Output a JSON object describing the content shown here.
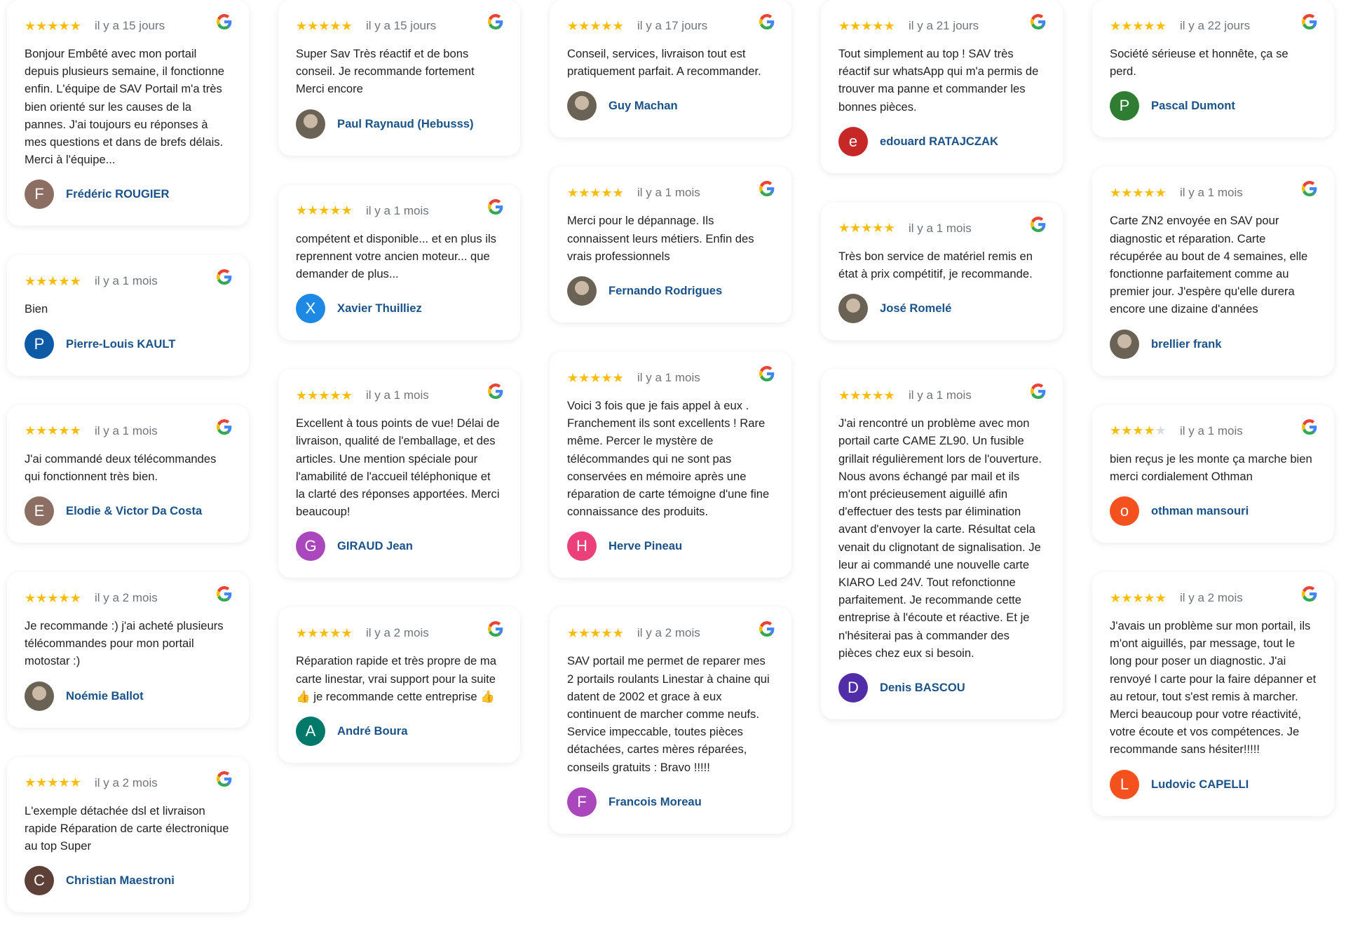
{
  "columns": [
    [
      {
        "rating": 5,
        "date": "il y a 15 jours",
        "text": "Bonjour Embêté avec mon portail depuis plusieurs semaine, il fonctionne enfin. L'équipe de SAV Portail m'a très bien orienté sur les causes de la pannes. J'ai toujours eu réponses à mes questions et dans de brefs délais. Merci à l'équipe...",
        "author": "Frédéric ROUGIER",
        "initial": "F",
        "color": "#8d6e63"
      },
      {
        "rating": 5,
        "date": "il y a 1 mois",
        "text": "Bien",
        "author": "Pierre-Louis KAULT",
        "initial": "P",
        "color": "#0d5aa7"
      },
      {
        "rating": 5,
        "date": "il y a 1 mois",
        "text": "J'ai commandé deux télécommandes qui fonctionnent très bien.",
        "author": "Elodie & Victor Da Costa",
        "initial": "E",
        "color": "#8d6e63"
      },
      {
        "rating": 5,
        "date": "il y a 2 mois",
        "text": "Je recommande :) j'ai acheté plusieurs télécommandes pour mon portail motostar :)",
        "author": "Noémie Ballot",
        "initial": "",
        "color": "photo"
      },
      {
        "rating": 5,
        "date": "il y a 2 mois",
        "text": "L'exemple détachée dsl et livraison rapide Réparation de carte électronique au top Super",
        "author": "Christian Maestroni",
        "initial": "C",
        "color": "#5d4037"
      }
    ],
    [
      {
        "rating": 5,
        "date": "il y a 15 jours",
        "text": "Super Sav Très réactif et de bons conseil. Je recommande fortement Merci encore",
        "author": "Paul Raynaud (Hebusss)",
        "initial": "",
        "color": "photo"
      },
      {
        "rating": 5,
        "date": "il y a 1 mois",
        "text": "compétent et disponible... et en plus ils reprennent votre ancien moteur... que demander de plus...",
        "author": "Xavier Thuilliez",
        "initial": "X",
        "color": "#1e88e5"
      },
      {
        "rating": 5,
        "date": "il y a 1 mois",
        "text": "Excellent à tous points de vue! Délai de livraison, qualité de l'emballage, et des articles. Une mention spéciale pour l'amabilité de l'accueil téléphonique et la clarté des réponses apportées. Merci beaucoup!",
        "author": "GIRAUD Jean",
        "initial": "G",
        "color": "#ab47bc"
      },
      {
        "rating": 5,
        "date": "il y a 2 mois",
        "text": "Réparation rapide et très propre de ma carte linestar, vrai support pour la suite 👍 je recommande cette entreprise 👍",
        "author": "André Boura",
        "initial": "A",
        "color": "#00796b"
      }
    ],
    [
      {
        "rating": 5,
        "date": "il y a 17 jours",
        "text": "Conseil, services, livraison tout est pratiquement parfait. A recommander.",
        "author": "Guy Machan",
        "initial": "",
        "color": "photo"
      },
      {
        "rating": 5,
        "date": "il y a 1 mois",
        "text": "Merci pour le dépannage. Ils connaissent leurs métiers. Enfin des vrais professionnels",
        "author": "Fernando Rodrigues",
        "initial": "",
        "color": "photo"
      },
      {
        "rating": 5,
        "date": "il y a 1 mois",
        "text": "Voici 3 fois que je fais appel à eux . Franchement ils sont excellents ! Rare même. Percer le mystère de télécommandes qui ne sont pas conservées en mémoire après une réparation de carte témoigne d'une fine connaissance des produits.",
        "author": "Herve Pineau",
        "initial": "H",
        "color": "#ec407a"
      },
      {
        "rating": 5,
        "date": "il y a 2 mois",
        "text": "SAV portail me permet de reparer mes 2 portails roulants Linestar à chaine qui datent de 2002 et grace à eux continuent de marcher comme neufs. Service impeccable, toutes pièces détachées, cartes mères réparées, conseils gratuits : Bravo !!!!!",
        "author": "Francois Moreau",
        "initial": "F",
        "color": "#ab47bc"
      }
    ],
    [
      {
        "rating": 5,
        "date": "il y a 21 jours",
        "text": "Tout simplement au top ! SAV très réactif sur whatsApp qui m'a permis de trouver ma panne et commander les bonnes pièces.",
        "author": "edouard RATAJCZAK",
        "initial": "e",
        "color": "#c62828"
      },
      {
        "rating": 5,
        "date": "il y a 1 mois",
        "text": "Très bon service de matériel remis en état à prix compétitif, je recommande.",
        "author": "José Romelé",
        "initial": "",
        "color": "photo"
      },
      {
        "rating": 5,
        "date": "il y a 1 mois",
        "text": "J'ai rencontré un problème avec mon portail carte CAME ZL90. Un fusible grillait régulièrement lors de l'ouverture. Nous avons échangé par mail et ils m'ont précieusement aiguillé afin d'effectuer des tests par élimination avant d'envoyer la carte. Résultat cela venait du clignotant de signalisation. Je leur ai commandé une nouvelle carte KIARO Led 24V. Tout refonctionne parfaitement. Je recommande cette entreprise à l'écoute et réactive. Et je n'hésiterai pas à commander des pièces chez eux si besoin.",
        "author": "Denis BASCOU",
        "initial": "D",
        "color": "#512da8"
      }
    ],
    [
      {
        "rating": 5,
        "date": "il y a 22 jours",
        "text": "Société sérieuse et honnête, ça se perd.",
        "author": "Pascal Dumont",
        "initial": "P",
        "color": "#2e7d32"
      },
      {
        "rating": 5,
        "date": "il y a 1 mois",
        "text": "Carte ZN2 envoyée en SAV pour diagnostic et réparation. Carte récupérée au bout de 4 semaines, elle fonctionne parfaitement comme au premier jour. J'espère qu'elle durera encore une dizaine d'années",
        "author": "brellier frank",
        "initial": "",
        "color": "photo"
      },
      {
        "rating": 4,
        "date": "il y a 1 mois",
        "text": "bien reçus je les monte ça marche bien merci cordialement Othman",
        "author": "othman mansouri",
        "initial": "o",
        "color": "#f4511e"
      },
      {
        "rating": 5,
        "date": "il y a 2 mois",
        "text": "J'avais un problème sur mon portail, ils m'ont aiguillés, par message, tout le long pour poser un diagnostic. J'ai renvoyé l carte pour la faire dépanner et au retour, tout s'est remis à marcher. Merci beaucoup pour votre réactivité, votre écoute et vos compétences. Je recommande sans hésiter!!!!!",
        "author": "Ludovic CAPELLI",
        "initial": "L",
        "color": "#f4511e"
      }
    ]
  ],
  "colors": {
    "star": "#fbbc04",
    "author": "#1a5289"
  },
  "icons": {
    "source": "google-g-icon",
    "rating": "star-icon"
  }
}
